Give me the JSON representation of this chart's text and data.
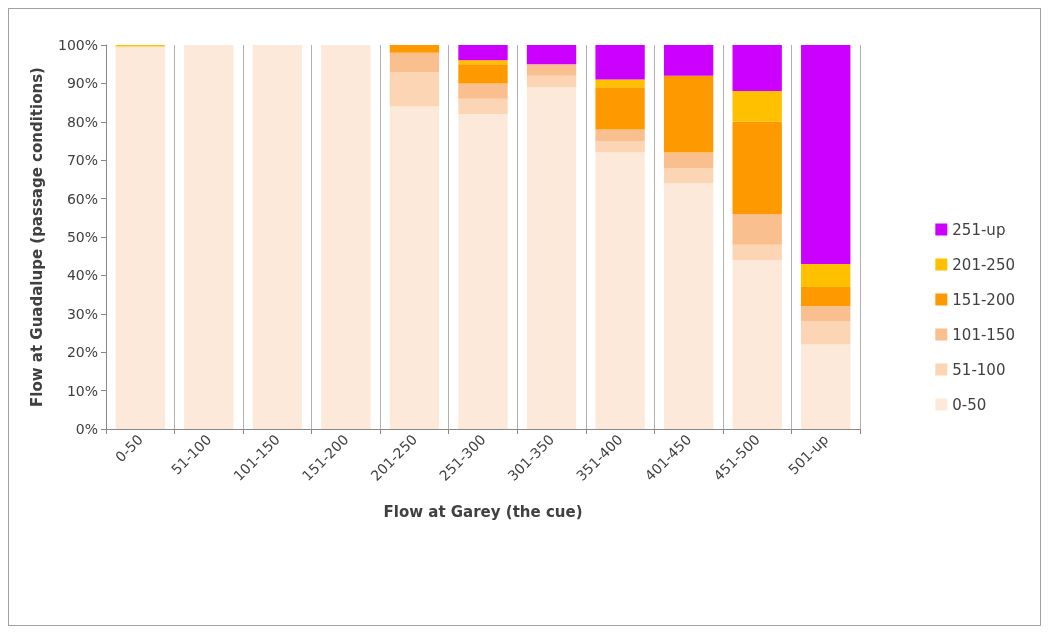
{
  "chart_data": {
    "type": "bar",
    "stacked": true,
    "xlabel": "Flow at Garey (the cue)",
    "ylabel": "Flow at Guadalupe (passage conditions)",
    "categories": [
      "0-50",
      "51-100",
      "101-150",
      "151-200",
      "201-250",
      "251-300",
      "301-350",
      "351-400",
      "401-450",
      "451-500",
      "501-up"
    ],
    "series": [
      {
        "name": "0-50",
        "color": "#fde9d9",
        "values": [
          99.6,
          100,
          100,
          100,
          84,
          82,
          89,
          72,
          64,
          44,
          22
        ]
      },
      {
        "name": "51-100",
        "color": "#fcd5b4",
        "values": [
          0,
          0,
          0,
          0,
          9,
          4,
          3,
          3,
          4,
          4,
          6
        ]
      },
      {
        "name": "101-150",
        "color": "#fabf8f",
        "values": [
          0,
          0,
          0,
          0,
          5,
          4,
          3,
          3,
          4,
          8,
          4
        ]
      },
      {
        "name": "151-200",
        "color": "#ff9900",
        "values": [
          0,
          0,
          0,
          0,
          2,
          5,
          0,
          11,
          20,
          24,
          5
        ]
      },
      {
        "name": "201-250",
        "color": "#ffc000",
        "values": [
          0.4,
          0,
          0,
          0,
          0,
          1,
          0,
          2,
          0,
          8,
          6
        ]
      },
      {
        "name": "251-up",
        "color": "#cc00ff",
        "values": [
          0,
          0,
          0,
          0,
          0,
          4,
          5,
          9,
          8,
          12,
          57
        ]
      }
    ],
    "ylim": [
      0,
      100
    ],
    "yticks": [
      {
        "value": 0,
        "label": "0%"
      },
      {
        "value": 10,
        "label": "10%"
      },
      {
        "value": 20,
        "label": "20%"
      },
      {
        "value": 30,
        "label": "30%"
      },
      {
        "value": 40,
        "label": "40%"
      },
      {
        "value": 50,
        "label": "50%"
      },
      {
        "value": 60,
        "label": "60%"
      },
      {
        "value": 70,
        "label": "70%"
      },
      {
        "value": 80,
        "label": "80%"
      },
      {
        "value": 90,
        "label": "90%"
      },
      {
        "value": 100,
        "label": "100%"
      }
    ],
    "grid": "x",
    "legend": "right"
  }
}
